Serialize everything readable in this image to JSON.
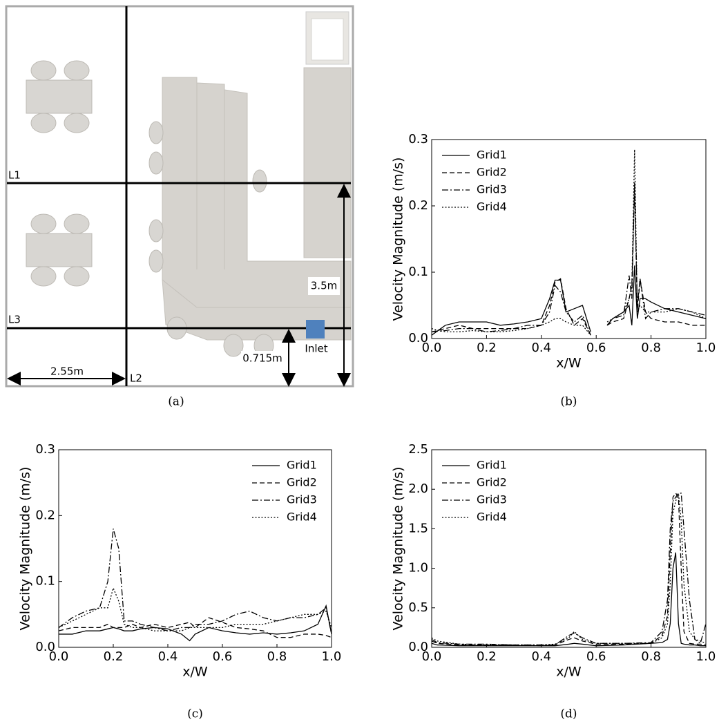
{
  "diagram": {
    "L1": "L1",
    "L2": "L2",
    "L3": "L3",
    "width": "2.55m",
    "height": "3.5m",
    "inlet_height": "0.715m",
    "inlet": "Inlet",
    "caption": "(a)"
  },
  "chart_data": [
    {
      "type": "line",
      "caption": "(b)",
      "xlabel": "x/W",
      "ylabel": "Velocity Magnitude (m/s)",
      "legend": "upper left",
      "xlim": [
        0,
        1
      ],
      "ylim": [
        0,
        0.3
      ],
      "xticks": [
        {
          "value": 0,
          "label": "0.0"
        },
        0.2,
        0.4,
        0.6,
        0.8,
        {
          "value": 1,
          "label": "1.0"
        }
      ],
      "yticks": [
        {
          "value": 0,
          "label": "0.0"
        },
        0.1,
        0.2,
        0.3
      ],
      "x": [
        0,
        0.05,
        0.1,
        0.15,
        0.2,
        0.25,
        0.3,
        0.35,
        0.4,
        0.43,
        0.45,
        0.47,
        0.49,
        0.52,
        0.55,
        0.58,
        0.62,
        0.64,
        0.66,
        0.7,
        0.72,
        0.73,
        0.74,
        0.75,
        0.76,
        0.78,
        0.8,
        0.85,
        0.9,
        0.95,
        1.0
      ],
      "series": [
        {
          "name": "Grid1",
          "color": "#000000",
          "dash": "solid",
          "values": [
            0.005,
            0.02,
            0.025,
            0.025,
            0.025,
            0.02,
            0.022,
            0.025,
            0.03,
            0.06,
            0.088,
            0.088,
            0.04,
            0.045,
            0.05,
            0.01,
            null,
            0.02,
            0.03,
            0.04,
            0.05,
            0.02,
            0.11,
            0.03,
            0.06,
            0.06,
            0.055,
            0.045,
            0.04,
            0.035,
            0.03
          ]
        },
        {
          "name": "Grid2",
          "color": "#000000",
          "dash": "dashed",
          "values": [
            0.01,
            0.015,
            0.02,
            0.015,
            0.015,
            0.015,
            0.015,
            0.015,
            0.02,
            0.05,
            0.085,
            0.09,
            0.045,
            0.02,
            0.03,
            0.005,
            null,
            0.02,
            0.025,
            0.03,
            0.06,
            0.08,
            0.23,
            0.04,
            0.09,
            0.04,
            0.03,
            0.025,
            0.025,
            0.02,
            0.02
          ]
        },
        {
          "name": "Grid3",
          "color": "#000000",
          "dash": "dashdot",
          "values": [
            0.01,
            0.012,
            0.015,
            0.015,
            0.01,
            0.012,
            0.015,
            0.02,
            0.02,
            0.04,
            0.08,
            0.07,
            0.04,
            0.025,
            0.035,
            0.005,
            null,
            0.02,
            0.03,
            0.035,
            0.095,
            0.06,
            0.235,
            0.05,
            0.09,
            0.03,
            0.04,
            0.045,
            0.045,
            0.04,
            0.035
          ]
        },
        {
          "name": "Grid4",
          "color": "#000000",
          "dash": "dotted",
          "values": [
            0.015,
            0.01,
            0.01,
            0.012,
            0.01,
            0.01,
            0.012,
            0.015,
            0.02,
            0.025,
            0.03,
            0.03,
            0.025,
            0.02,
            0.02,
            0.005,
            null,
            0.025,
            0.03,
            0.04,
            0.06,
            0.08,
            0.285,
            0.04,
            0.05,
            0.04,
            0.04,
            0.04,
            0.045,
            0.04,
            0.03
          ]
        }
      ]
    },
    {
      "type": "line",
      "caption": "(c)",
      "xlabel": "x/W",
      "ylabel": "Velocity Magnitude (m/s)",
      "legend": "upper right",
      "xlim": [
        0,
        1
      ],
      "ylim": [
        0,
        0.3
      ],
      "xticks": [
        {
          "value": 0,
          "label": "0.0"
        },
        0.2,
        0.4,
        0.6,
        0.8,
        {
          "value": 1,
          "label": "1.0"
        }
      ],
      "yticks": [
        {
          "value": 0,
          "label": "0.0"
        },
        0.1,
        0.2,
        0.3
      ],
      "x": [
        0,
        0.05,
        0.1,
        0.15,
        0.18,
        0.2,
        0.22,
        0.24,
        0.27,
        0.3,
        0.35,
        0.4,
        0.45,
        0.48,
        0.5,
        0.55,
        0.6,
        0.65,
        0.7,
        0.75,
        0.8,
        0.85,
        0.9,
        0.95,
        0.98,
        1.0
      ],
      "series": [
        {
          "name": "Grid1",
          "color": "#000000",
          "dash": "solid",
          "values": [
            0.02,
            0.02,
            0.025,
            0.025,
            0.028,
            0.03,
            0.028,
            0.025,
            0.025,
            0.028,
            0.03,
            0.028,
            0.02,
            0.01,
            0.02,
            0.03,
            0.025,
            0.022,
            0.02,
            0.022,
            0.02,
            0.022,
            0.025,
            0.035,
            0.063,
            0.02
          ]
        },
        {
          "name": "Grid2",
          "color": "#000000",
          "dash": "dashed",
          "values": [
            0.025,
            0.03,
            0.03,
            0.03,
            0.035,
            0.03,
            0.03,
            0.03,
            0.035,
            0.03,
            0.035,
            0.03,
            0.035,
            0.038,
            0.03,
            0.045,
            0.038,
            0.03,
            0.028,
            0.025,
            0.015,
            0.015,
            0.02,
            0.02,
            0.018,
            0.015
          ]
        },
        {
          "name": "Grid3",
          "color": "#000000",
          "dash": "dashdot",
          "values": [
            0.03,
            0.045,
            0.055,
            0.06,
            0.1,
            0.18,
            0.15,
            0.04,
            0.04,
            0.035,
            0.03,
            0.025,
            0.03,
            0.03,
            0.035,
            0.035,
            0.04,
            0.05,
            0.055,
            0.045,
            0.04,
            0.045,
            0.045,
            0.05,
            0.06,
            0.02
          ]
        },
        {
          "name": "Grid4",
          "color": "#000000",
          "dash": "dotted",
          "values": [
            0.03,
            0.04,
            0.05,
            0.06,
            0.06,
            0.09,
            0.07,
            0.035,
            0.03,
            0.03,
            0.025,
            0.025,
            0.025,
            0.03,
            0.03,
            0.03,
            0.03,
            0.035,
            0.035,
            0.035,
            0.04,
            0.045,
            0.05,
            0.05,
            0.055,
            0.03
          ]
        }
      ]
    },
    {
      "type": "line",
      "caption": "(d)",
      "xlabel": "x/W",
      "ylabel": "Velocity Magnitude (m/s)",
      "legend": "upper left",
      "xlim": [
        0,
        1
      ],
      "ylim": [
        0,
        2.5
      ],
      "xticks": [
        {
          "value": 0,
          "label": "0.0"
        },
        0.2,
        0.4,
        0.6,
        0.8,
        {
          "value": 1,
          "label": "1.0"
        }
      ],
      "yticks": [
        {
          "value": 0,
          "label": "0.0"
        },
        0.5,
        {
          "value": 1,
          "label": "1.0"
        },
        1.5,
        {
          "value": 2,
          "label": "2.0"
        },
        2.5
      ],
      "x": [
        0,
        0.02,
        0.1,
        0.2,
        0.3,
        0.4,
        0.45,
        0.5,
        0.52,
        0.55,
        0.6,
        0.7,
        0.8,
        0.84,
        0.86,
        0.87,
        0.88,
        0.89,
        0.9,
        0.91,
        0.92,
        0.94,
        0.96,
        0.98,
        1.0
      ],
      "series": [
        {
          "name": "Grid1",
          "color": "#000000",
          "dash": "solid",
          "values": [
            0.05,
            0.03,
            0.02,
            0.02,
            0.02,
            0.02,
            0.02,
            0.04,
            0.05,
            0.04,
            0.02,
            0.03,
            0.05,
            0.06,
            0.1,
            0.3,
            1.0,
            1.2,
            0.3,
            0.05,
            0.04,
            0.03,
            0.03,
            0.02,
            0.02
          ]
        },
        {
          "name": "Grid2",
          "color": "#000000",
          "dash": "dashed",
          "values": [
            0.08,
            0.05,
            0.03,
            0.03,
            0.03,
            0.02,
            0.03,
            0.1,
            0.12,
            0.08,
            0.04,
            0.04,
            0.05,
            0.15,
            0.4,
            1.2,
            1.9,
            1.95,
            1.9,
            1.0,
            0.2,
            0.05,
            0.04,
            0.04,
            0.03
          ]
        },
        {
          "name": "Grid3",
          "color": "#000000",
          "dash": "dashdot",
          "values": [
            0.1,
            0.06,
            0.04,
            0.04,
            0.03,
            0.03,
            0.03,
            0.15,
            0.18,
            0.12,
            0.05,
            0.05,
            0.06,
            0.2,
            0.6,
            1.5,
            1.85,
            1.9,
            1.95,
            1.95,
            1.5,
            0.6,
            0.1,
            0.05,
            0.3
          ]
        },
        {
          "name": "Grid4",
          "color": "#000000",
          "dash": "dotted",
          "values": [
            0.12,
            0.08,
            0.04,
            0.03,
            0.03,
            0.03,
            0.04,
            0.12,
            0.2,
            0.1,
            0.05,
            0.05,
            0.05,
            0.12,
            0.3,
            0.8,
            1.7,
            1.85,
            1.95,
            1.6,
            0.8,
            0.2,
            0.1,
            0.08,
            0.05
          ]
        }
      ]
    }
  ]
}
